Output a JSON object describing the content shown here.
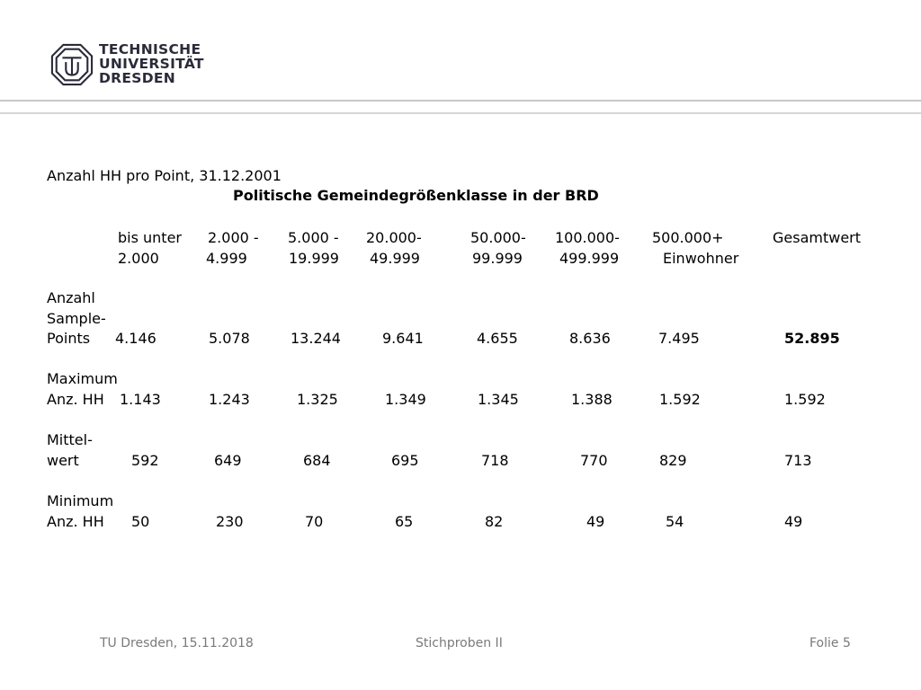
{
  "logo": {
    "lines": [
      "TECHNISCHE",
      "UNIVERSITÄT",
      "DRESDEN"
    ]
  },
  "table": {
    "caption": "Anzahl HH pro Point, 31.12.2001",
    "heading": "Politische Gemeindegrößenklasse in der BRD",
    "columns_top": [
      "bis unter",
      "2.000 -",
      "5.000 -",
      "20.000-",
      "50.000-",
      "100.000-",
      "500.000+",
      "Gesamtwert"
    ],
    "columns_bottom": [
      "2.000",
      "4.999",
      "19.999",
      "49.999",
      "99.999",
      "499.999",
      "Einwohner"
    ],
    "rows": [
      {
        "label": [
          "Anzahl",
          "Sample-",
          "Points"
        ],
        "values": [
          "4.146",
          "5.078",
          "13.244",
          "9.641",
          "4.655",
          "8.636",
          "7.495",
          "52.895"
        ]
      },
      {
        "label": [
          "Maximum",
          "Anz. HH"
        ],
        "values": [
          "1.143",
          "1.243",
          "1.325",
          "1.349",
          "1.345",
          "1.388",
          "1.592",
          "1.592"
        ]
      },
      {
        "label": [
          "Mittel-",
          "wert"
        ],
        "values": [
          "592",
          "649",
          "684",
          "695",
          "718",
          "770",
          "829",
          "713"
        ]
      },
      {
        "label": [
          "Minimum",
          "Anz. HH"
        ],
        "values": [
          "50",
          "230",
          "70",
          "65",
          "82",
          "49",
          "54",
          "49"
        ]
      }
    ]
  },
  "footer": {
    "left": "TU Dresden, 15.11.2018",
    "center": "Stichproben II",
    "right": "Folie 5"
  }
}
